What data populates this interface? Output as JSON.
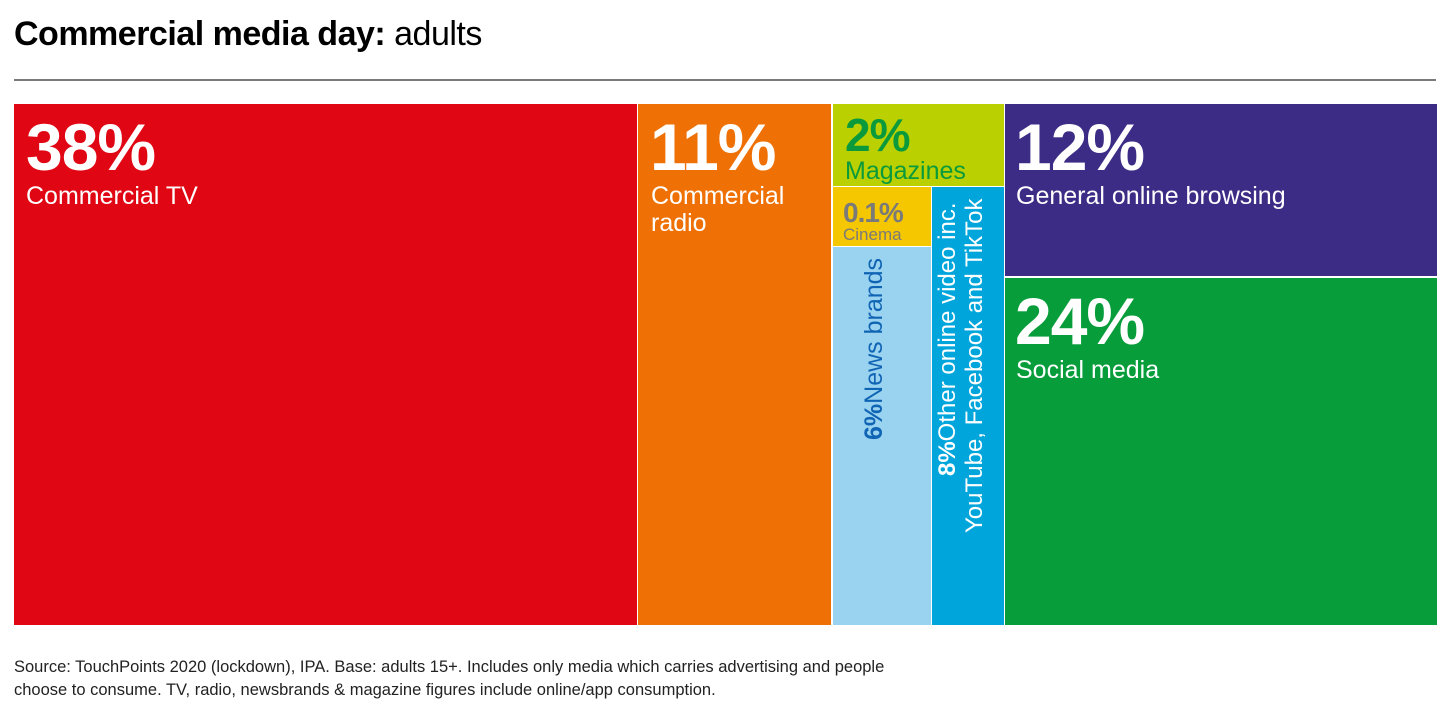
{
  "header": {
    "title_bold": "Commercial media day:",
    "title_rest": " adults"
  },
  "chart_data": {
    "type": "treemap",
    "items": [
      {
        "value_label": "38%",
        "value": 38,
        "label_lines": [
          "Commercial TV"
        ],
        "color": "#e00613",
        "text_color": "#ffffff"
      },
      {
        "value_label": "11%",
        "value": 11,
        "label_lines": [
          "Commercial",
          "radio"
        ],
        "color": "#ef7106",
        "text_color": "#ffffff"
      },
      {
        "value_label": "2%",
        "value": 2,
        "label_lines": [
          "Magazines"
        ],
        "color": "#bbd000",
        "text_color": "#0a9a3c"
      },
      {
        "value_label": "0.1%",
        "value": 0.1,
        "label_lines": [
          "Cinema"
        ],
        "color": "#f5c700",
        "text_color": "#7a7a7a"
      },
      {
        "value_label": "6%",
        "value": 6,
        "label_lines": [
          "News brands"
        ],
        "color": "#9ad3f0",
        "text_color": "#1064b4"
      },
      {
        "value_label": "8%",
        "value": 8,
        "label_lines": [
          "Other online video inc.",
          "YouTube, Facebook and TikTok"
        ],
        "color": "#00a6db",
        "text_color": "#ffffff"
      },
      {
        "value_label": "12%",
        "value": 12,
        "label_lines": [
          "General online browsing"
        ],
        "color": "#3c2c85",
        "text_color": "#ffffff"
      },
      {
        "value_label": "24%",
        "value": 24,
        "label_lines": [
          "Social media"
        ],
        "color": "#079d3a",
        "text_color": "#ffffff"
      }
    ]
  },
  "footer": {
    "source_line1": "Source: TouchPoints 2020 (lockdown), IPA. Base: adults 15+. Includes only media which carries advertising and people",
    "source_line2": "choose to consume. TV, radio, newsbrands & magazine figures include online/app consumption."
  }
}
